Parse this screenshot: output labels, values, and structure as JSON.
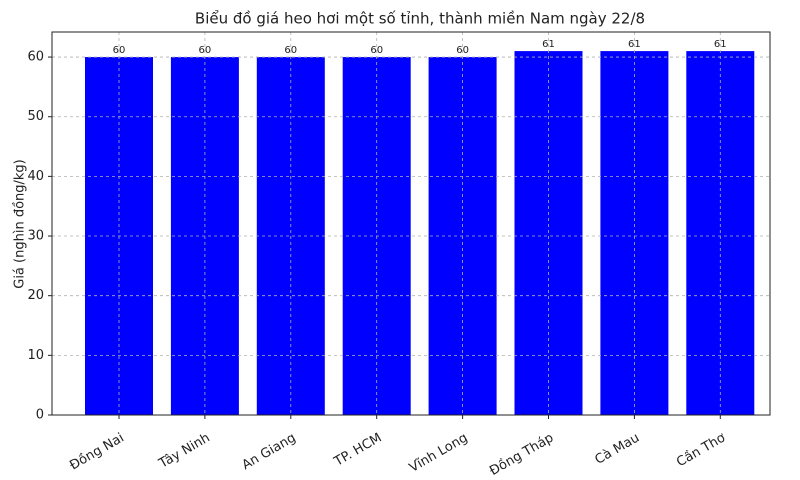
{
  "chart_data": {
    "type": "bar",
    "title": "Biểu đồ giá heo hơi một số tỉnh, thành miền Nam ngày 22/8",
    "y_label": "Giá (nghìn đồng/kg)",
    "categories": [
      "Đồng Nai",
      "Tây Ninh",
      "An Giang",
      "TP. HCM",
      "Vĩnh Long",
      "Đồng Tháp",
      "Cà Mau",
      "Cần Thơ"
    ],
    "values": [
      60,
      60,
      60,
      60,
      60,
      61,
      61,
      61
    ],
    "color": "#0000ff",
    "ylim": [
      0,
      64.2
    ],
    "yticks": [
      0,
      10,
      20,
      30,
      40,
      50,
      60
    ],
    "grid": true
  }
}
